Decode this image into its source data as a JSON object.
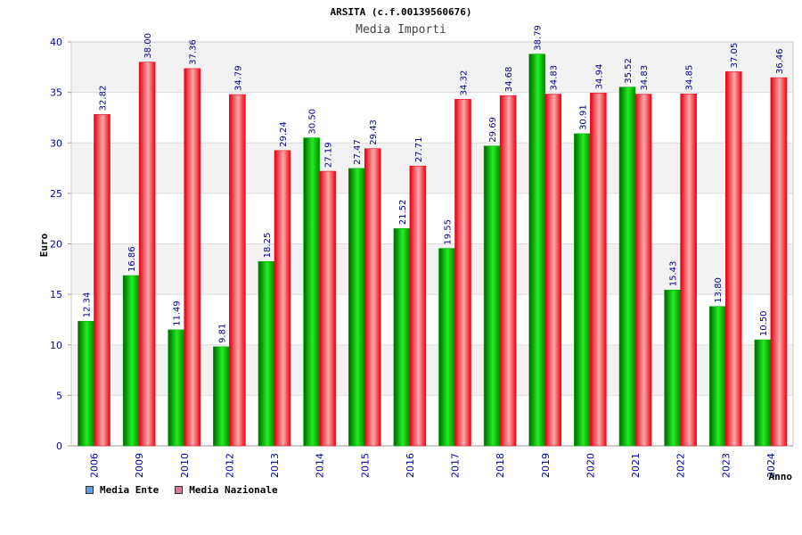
{
  "chart_data": {
    "type": "bar",
    "title": "ARSITA (c.f.00139560676)",
    "subtitle": "Media Importi",
    "xlabel": "Anno",
    "ylabel": "Euro",
    "ylim": [
      0,
      40
    ],
    "yticks": [
      0,
      5,
      10,
      15,
      20,
      25,
      30,
      35,
      40
    ],
    "categories": [
      "2006",
      "2009",
      "2010",
      "2012",
      "2013",
      "2014",
      "2015",
      "2016",
      "2017",
      "2018",
      "2019",
      "2020",
      "2021",
      "2022",
      "2023",
      "2024"
    ],
    "series": [
      {
        "name": "Media Ente",
        "color": "#00b000",
        "legend_color": "#5aa0e6",
        "values": [
          12.34,
          16.86,
          11.49,
          9.81,
          18.25,
          30.5,
          27.47,
          21.52,
          19.55,
          29.69,
          38.79,
          30.91,
          35.52,
          15.43,
          13.8,
          10.5
        ]
      },
      {
        "name": "Media Nazionale",
        "color": "#ee1122",
        "legend_color": "#dd7799",
        "values": [
          32.82,
          38.0,
          37.36,
          34.79,
          29.24,
          27.19,
          29.43,
          27.71,
          34.32,
          34.68,
          34.83,
          34.94,
          34.83,
          34.85,
          37.05,
          36.46
        ]
      }
    ],
    "value_labels": [
      [
        "12.34",
        "16.86",
        "11.49",
        "9.81",
        "18.25",
        "30.50",
        "27.47",
        "21.52",
        "19.55",
        "29.69",
        "38.79",
        "30.91",
        "35.52",
        "15.43",
        "13.80",
        "10.50"
      ],
      [
        "32.82",
        "38.00",
        "37.36",
        "34.79",
        "29.24",
        "27.19",
        "29.43",
        "27.71",
        "34.32",
        "34.68",
        "34.83",
        "34.94",
        "34.83",
        "34.85",
        "37.05",
        "36.46"
      ]
    ],
    "grid": true,
    "legend_position": "bottom-left"
  }
}
